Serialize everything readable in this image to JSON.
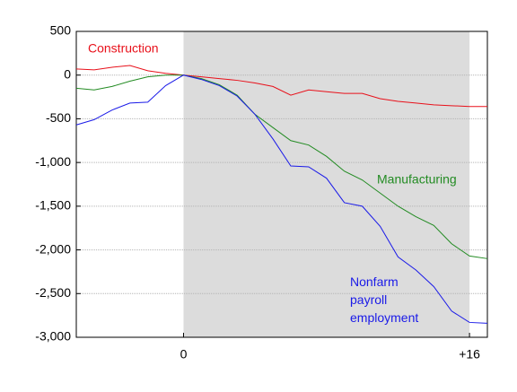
{
  "chart_data": {
    "type": "line",
    "x": [
      -6,
      -5,
      -4,
      -3,
      -2,
      -1,
      0,
      1,
      2,
      3,
      4,
      5,
      6,
      7,
      8,
      9,
      10,
      11,
      12,
      13,
      14,
      15,
      16,
      17
    ],
    "series": [
      {
        "name": "Construction",
        "color": "#e8101a",
        "values": [
          70,
          60,
          90,
          110,
          50,
          20,
          0,
          -20,
          -40,
          -60,
          -90,
          -130,
          -230,
          -170,
          -190,
          -210,
          -210,
          -270,
          -300,
          -320,
          -340,
          -350,
          -360,
          -360
        ]
      },
      {
        "name": "Manufacturing",
        "color": "#228b22",
        "values": [
          -150,
          -170,
          -130,
          -70,
          -20,
          0,
          0,
          -40,
          -110,
          -230,
          -450,
          -600,
          -750,
          -800,
          -930,
          -1100,
          -1200,
          -1350,
          -1500,
          -1620,
          -1720,
          -1930,
          -2070,
          -2100
        ]
      },
      {
        "name": "Nonfarm payroll employment",
        "color": "#1a1ae8",
        "values": [
          -570,
          -510,
          -400,
          -320,
          -310,
          -120,
          0,
          -50,
          -120,
          -240,
          -450,
          -730,
          -1040,
          -1050,
          -1180,
          -1460,
          -1500,
          -1730,
          -2080,
          -2230,
          -2420,
          -2700,
          -2830,
          -2840
        ]
      }
    ],
    "xlim": [
      -6,
      17
    ],
    "xticks": [
      0,
      {
        "value": 16,
        "label": "+16"
      }
    ],
    "ylim": [
      -3000,
      500
    ],
    "yticks": [
      500,
      0,
      -500,
      {
        "value": -1000,
        "label": "-1,000"
      },
      {
        "value": -1500,
        "label": "-1,500"
      },
      {
        "value": -2000,
        "label": "-2,000"
      },
      {
        "value": -2500,
        "label": "-2,500"
      },
      {
        "value": -3000,
        "label": "-3,000"
      }
    ],
    "grid": true,
    "shaded_range": [
      0,
      16
    ]
  }
}
